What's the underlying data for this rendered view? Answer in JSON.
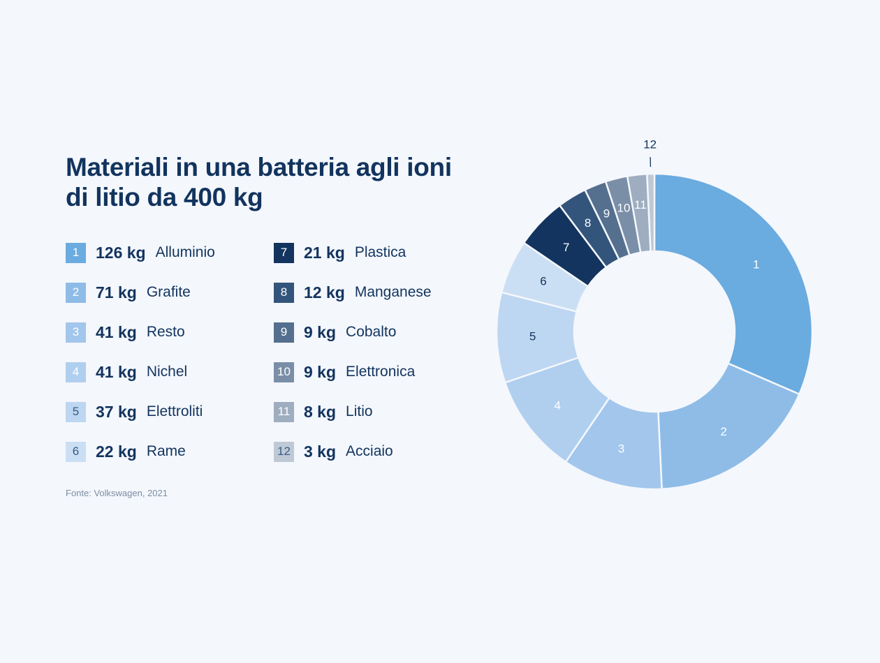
{
  "title": "Materiali in una batteria agli ioni di litio da 400 kg",
  "source": "Fonte: Volkswagen, 2021",
  "chart_data": {
    "type": "pie",
    "variant": "donut",
    "title": "Materiali in una batteria agli ioni di litio da 400 kg",
    "total_kg": 400,
    "categories": [
      "Alluminio",
      "Grafite",
      "Resto",
      "Nichel",
      "Elettroliti",
      "Rame",
      "Plastica",
      "Manganese",
      "Cobalto",
      "Elettronica",
      "Litio",
      "Acciaio"
    ],
    "values": [
      126,
      71,
      41,
      41,
      37,
      22,
      21,
      12,
      9,
      9,
      8,
      3
    ],
    "unit": "kg",
    "slices": [
      {
        "n": "1",
        "value": 126,
        "value_label": "126 kg",
        "name": "Alluminio",
        "color": "#6aabe0",
        "label_color": "#ffffff"
      },
      {
        "n": "2",
        "value": 71,
        "value_label": "71 kg",
        "name": "Grafite",
        "color": "#8ebce7",
        "label_color": "#ffffff"
      },
      {
        "n": "3",
        "value": 41,
        "value_label": "41 kg",
        "name": "Resto",
        "color": "#a2c6ec",
        "label_color": "#ffffff"
      },
      {
        "n": "4",
        "value": 41,
        "value_label": "41 kg",
        "name": "Nichel",
        "color": "#b0cfef",
        "label_color": "#ffffff"
      },
      {
        "n": "5",
        "value": 37,
        "value_label": "37 kg",
        "name": "Elettroliti",
        "color": "#bdd6f1",
        "label_color": "#12345e"
      },
      {
        "n": "6",
        "value": 22,
        "value_label": "22 kg",
        "name": "Rame",
        "color": "#cbdff4",
        "label_color": "#12345e"
      },
      {
        "n": "7",
        "value": 21,
        "value_label": "21 kg",
        "name": "Plastica",
        "color": "#12345e",
        "label_color": "#ffffff"
      },
      {
        "n": "8",
        "value": 12,
        "value_label": "12 kg",
        "name": "Manganese",
        "color": "#33557c",
        "label_color": "#ffffff"
      },
      {
        "n": "9",
        "value": 9,
        "value_label": "9 kg",
        "name": "Cobalto",
        "color": "#55708f",
        "label_color": "#ffffff"
      },
      {
        "n": "10",
        "value": 9,
        "value_label": "9 kg",
        "name": "Elettronica",
        "color": "#7a8ea7",
        "label_color": "#ffffff"
      },
      {
        "n": "11",
        "value": 8,
        "value_label": "8 kg",
        "name": "Litio",
        "color": "#9eadbf",
        "label_color": "#ffffff"
      },
      {
        "n": "12",
        "value": 3,
        "value_label": "3 kg",
        "name": "Acciaio",
        "color": "#bfc9d6",
        "label_color": "#12345e"
      }
    ]
  }
}
